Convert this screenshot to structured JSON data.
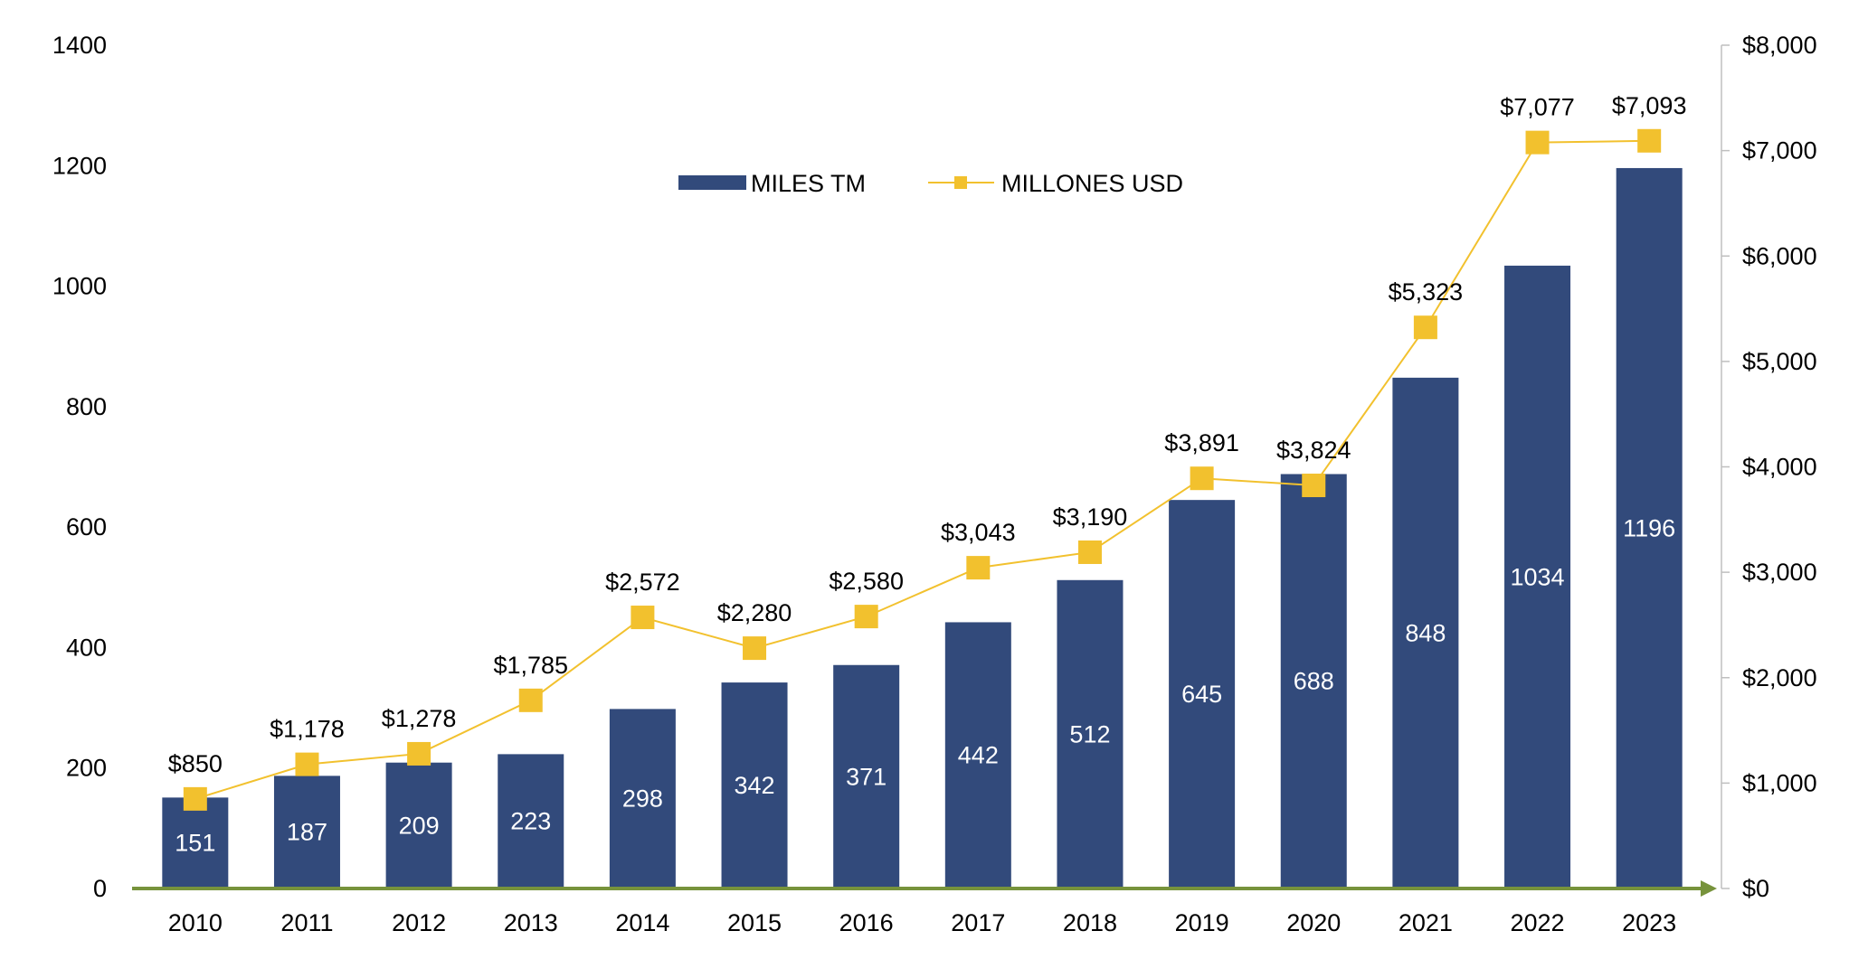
{
  "chart_data": {
    "type": "bar",
    "categories": [
      "2010",
      "2011",
      "2012",
      "2013",
      "2014",
      "2015",
      "2016",
      "2017",
      "2018",
      "2019",
      "2020",
      "2021",
      "2022",
      "2023"
    ],
    "series": [
      {
        "name": "MILES TM",
        "type": "bar",
        "axis": "left",
        "values": [
          151,
          187,
          209,
          223,
          298,
          342,
          371,
          442,
          512,
          645,
          688,
          848,
          1034,
          1196
        ],
        "labels": [
          "151",
          "187",
          "209",
          "223",
          "298",
          "342",
          "371",
          "442",
          "512",
          "645",
          "688",
          "848",
          "1034",
          "1196"
        ]
      },
      {
        "name": "MILLONES USD",
        "type": "line",
        "axis": "right",
        "values": [
          850,
          1178,
          1278,
          1785,
          2572,
          2280,
          2580,
          3043,
          3190,
          3891,
          3824,
          5323,
          7077,
          7093
        ],
        "labels": [
          "$850",
          "$1,178",
          "$1,278",
          "$1,785",
          "$2,572",
          "$2,280",
          "$2,580",
          "$3,043",
          "$3,190",
          "$3,891",
          "$3,824",
          "$5,323",
          "$7,077",
          "$7,093"
        ]
      }
    ],
    "y_left": {
      "ylim": [
        0,
        1400
      ],
      "ticks": [
        "0",
        "200",
        "400",
        "600",
        "800",
        "1000",
        "1200",
        "1400"
      ]
    },
    "y_right": {
      "ylim": [
        0,
        8000
      ],
      "ticks": [
        "$0",
        "$1,000",
        "$2,000",
        "$3,000",
        "$4,000",
        "$5,000",
        "$6,000",
        "$7,000",
        "$8,000"
      ]
    },
    "legend": {
      "position": "top-center",
      "items": [
        "MILES TM",
        "MILLONES USD"
      ]
    },
    "grid": false,
    "colors": {
      "bar": "#324a7b",
      "line": "#f2c12e",
      "marker": "#f2c12e",
      "x_axis": "#77933c",
      "right_axis": "#bfbfbf"
    }
  }
}
